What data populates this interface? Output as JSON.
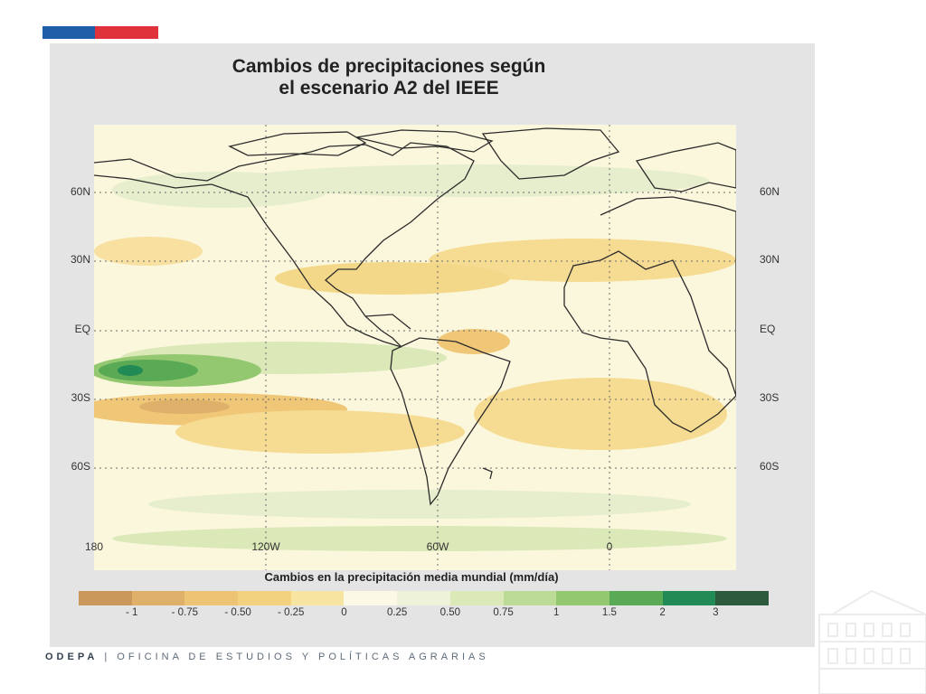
{
  "slide": {
    "flag_colors": [
      "#1f5fa8",
      "#e0323a"
    ],
    "footer_brand": "ODEPA",
    "footer_sep": "|",
    "footer_text": "OFICINA DE ESTUDIOS Y POLÍTICAS AGRARIAS"
  },
  "figure": {
    "title_line1": "Cambios de precipitaciones según",
    "title_line2": "el escenario A2 del IEEE",
    "lat_labels": [
      "60N",
      "30N",
      "EQ",
      "30S",
      "60S"
    ],
    "lon_labels": [
      "180",
      "120W",
      "60W",
      "0"
    ],
    "legend_title": "Cambios en la precipitación media mundial (mm/día)",
    "colorbar_ticks": [
      "- 1",
      "- 0.75",
      "- 0.50",
      "- 0.25",
      "0",
      "0.25",
      "0.50",
      "0.75",
      "1",
      "1.5",
      "2",
      "3"
    ],
    "colorbar_colors": [
      "#c9985a",
      "#deb069",
      "#ecc474",
      "#f3d27f",
      "#f7e4a0",
      "#fcf8e6",
      "#eef2d9",
      "#dbe8b8",
      "#bcdb96",
      "#93c870",
      "#5aa954",
      "#228a54",
      "#2d5a3d"
    ]
  }
}
